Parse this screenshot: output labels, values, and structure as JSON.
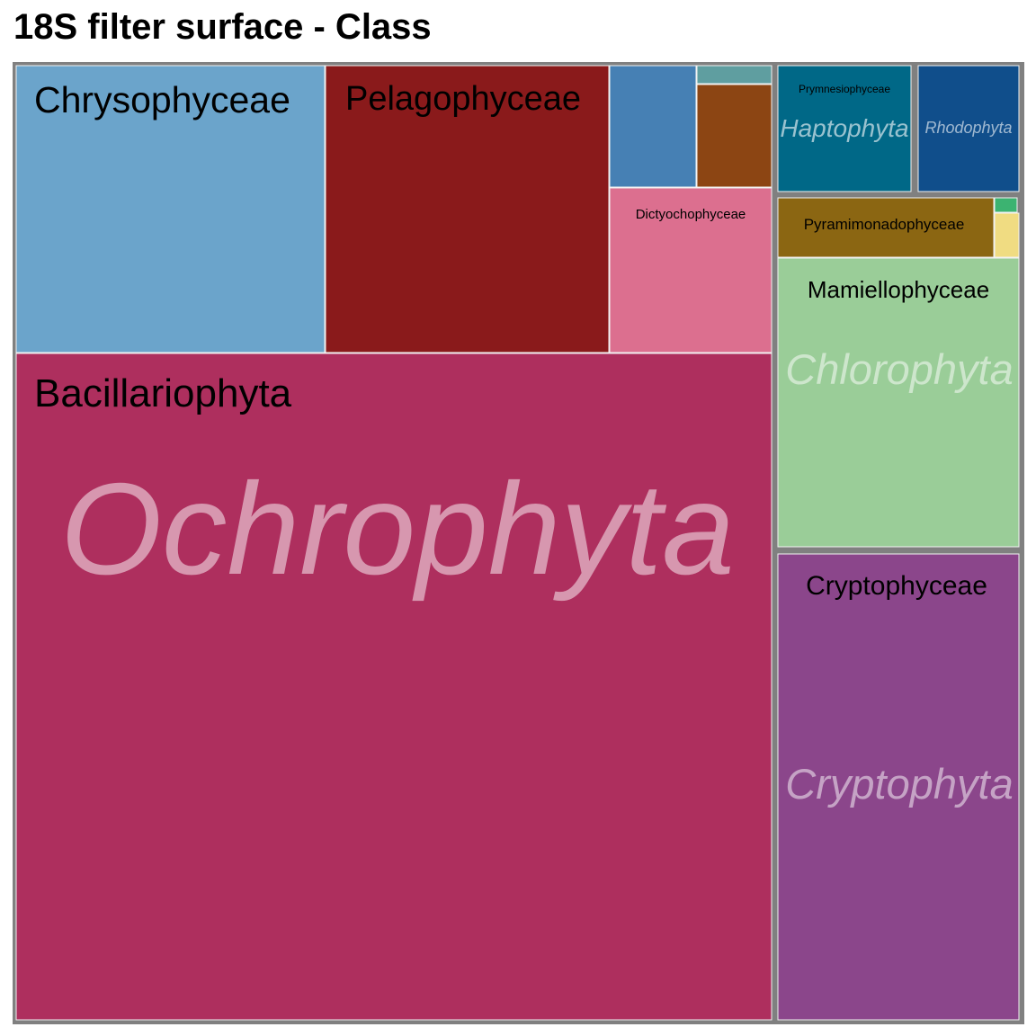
{
  "title": "18S filter surface - Class",
  "chart_data": {
    "type": "treemap",
    "title": "18S filter surface - Class",
    "colors": {
      "border": "#808080",
      "separator": "#f2f2f2"
    },
    "groups": [
      {
        "name": "Ochrophyta",
        "classes": [
          {
            "name": "Bacillariophyta",
            "color": "#AE2F5E"
          },
          {
            "name": "Chrysophyceae",
            "color": "#6BA4CB"
          },
          {
            "name": "Pelagophyceae",
            "color": "#8A1A1B"
          },
          {
            "name": "Dictyochophyceae",
            "color": "#DC6F8F"
          },
          {
            "name": "",
            "color": "#4680B4"
          },
          {
            "name": "",
            "color": "#8C4513"
          },
          {
            "name": "",
            "color": "#5F9EA0"
          }
        ]
      },
      {
        "name": "Chlorophyta",
        "classes": [
          {
            "name": "Mamiellophyceae",
            "color": "#9ACD98"
          },
          {
            "name": "Pyramimonadophyceae",
            "color": "#8B6612"
          },
          {
            "name": "",
            "color": "#F0DC82"
          },
          {
            "name": "",
            "color": "#3CB371"
          }
        ]
      },
      {
        "name": "Cryptophyta",
        "classes": [
          {
            "name": "Cryptophyceae",
            "color": "#8B468B"
          }
        ]
      },
      {
        "name": "Haptophyta",
        "classes": [
          {
            "name": "Prymnesiophyceae",
            "color": "#006887"
          }
        ]
      },
      {
        "name": "Rhodophyta",
        "classes": [
          {
            "name": "",
            "color": "#104E8B"
          }
        ]
      }
    ]
  }
}
